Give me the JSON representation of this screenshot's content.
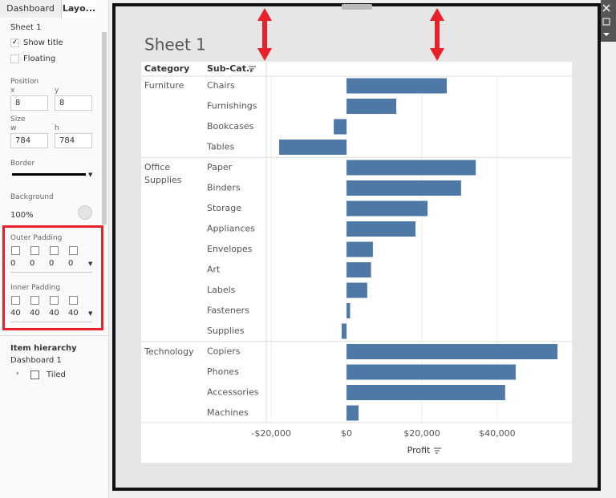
{
  "panel": {
    "tabs": [
      "Dashboard",
      "Layo..."
    ],
    "selected_item": "Sheet 1",
    "show_title": "Show title",
    "floating": "Floating",
    "position": {
      "label": "Position",
      "x_label": "x",
      "y_label": "y",
      "x": 8,
      "y": 8
    },
    "size": {
      "label": "Size",
      "w_label": "w",
      "h_label": "h",
      "w": 784,
      "h": 784
    },
    "border": "Border",
    "background": {
      "label": "Background",
      "opacity": "100%"
    },
    "outer_padding": {
      "label": "Outer Padding",
      "values": [
        0,
        0,
        0,
        0
      ]
    },
    "inner_padding": {
      "label": "Inner Padding",
      "values": [
        40,
        40,
        40,
        40
      ]
    },
    "hierarchy": {
      "label": "Item hierarchy",
      "dashboard": "Dashboard 1",
      "layout": "Tiled"
    }
  },
  "chart_data": {
    "type": "bar",
    "orientation": "horizontal",
    "title": "Sheet 1",
    "headers": {
      "segment": "Category",
      "sub_category": "Sub-Cat.."
    },
    "x_label": "Profit",
    "segments": [
      "Furniture",
      null,
      null,
      null,
      "Office Supplies",
      null,
      null,
      null,
      null,
      null,
      null,
      null,
      null,
      "Technology",
      null,
      null,
      null
    ],
    "categories": [
      "Chairs",
      "Furnishings",
      "Bookcases",
      "Tables",
      "Paper",
      "Binders",
      "Storage",
      "Appliances",
      "Envelopes",
      "Art",
      "Labels",
      "Fasteners",
      "Supplies",
      "Copiers",
      "Phones",
      "Accessories",
      "Machines"
    ],
    "values": [
      26600,
      13200,
      -3400,
      -17900,
      34300,
      30400,
      21500,
      18300,
      7000,
      6500,
      5500,
      950,
      -1300,
      56000,
      44900,
      42100,
      3200
    ],
    "color": "#4e79a7",
    "xlim": [
      -21300,
      59600
    ],
    "xticks": [
      {
        "value": -20000,
        "label": "-$20,000"
      },
      {
        "value": 0,
        "label": "$0"
      },
      {
        "value": 20000,
        "label": "$20,000"
      },
      {
        "value": 40000,
        "label": "$40,000"
      }
    ],
    "grid": true
  }
}
